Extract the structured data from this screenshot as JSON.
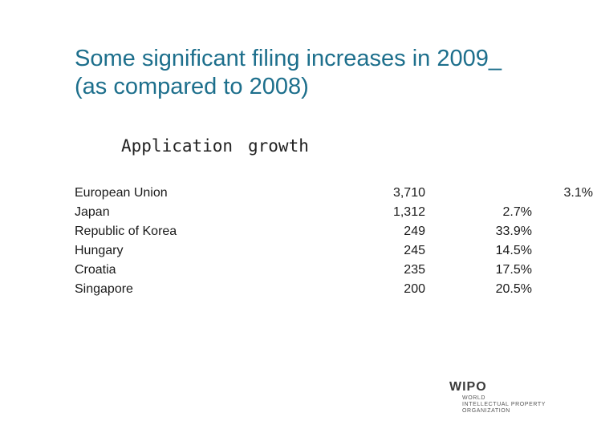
{
  "slide": {
    "title_line1": "Some significant filing increases in 2009_",
    "title_line2": "(as compared to 2008)",
    "header_application": "Application",
    "header_growth": "growth",
    "title_color": "#1d6f8c"
  },
  "rows": [
    {
      "country": "European Union",
      "count": "3,710",
      "growth": "3.1%"
    },
    {
      "country": "Japan",
      "count": "1,312",
      "growth": "2.7%"
    },
    {
      "country": "Republic of Korea",
      "count": "249",
      "growth": "33.9%"
    },
    {
      "country": "Hungary",
      "count": "245",
      "growth": "14.5%"
    },
    {
      "country": "Croatia",
      "count": "235",
      "growth": "17.5%"
    },
    {
      "country": "Singapore",
      "count": "200",
      "growth": "20.5%"
    }
  ],
  "logo": {
    "mark": "WIPO",
    "line1": "WORLD",
    "line2": "INTELLECTUAL PROPERTY",
    "line3": "ORGANIZATION"
  }
}
